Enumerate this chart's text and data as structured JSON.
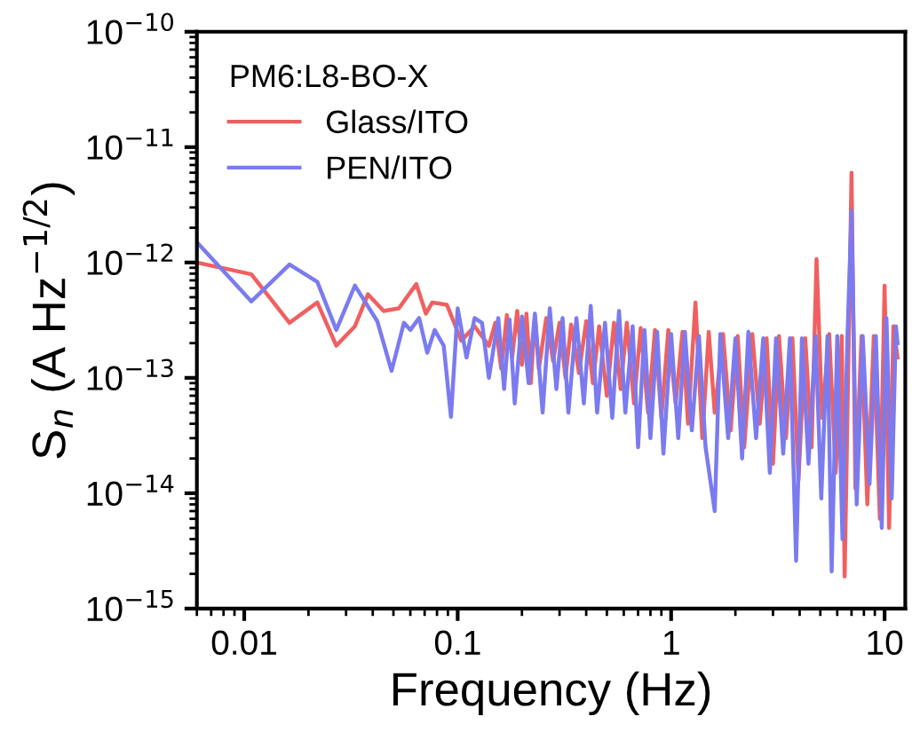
{
  "chart_data": {
    "type": "line",
    "xlabel": "Frequency (Hz)",
    "ylabel": "S$_{n}$ (A Hz$^{−1/2}$)",
    "legend_title": "PM6:L8-BO-X",
    "log": "xy",
    "grid": false,
    "legend": "top left",
    "marker": "none",
    "line_style": "solid",
    "xlim": [
      0.006,
      12.5
    ],
    "xticks": [
      0.01,
      0.1,
      1,
      10
    ],
    "ylim": [
      1e-15,
      1e-10
    ],
    "yticks": [
      {
        "value": 1e-15,
        "label": "10$^{−15}$"
      },
      {
        "value": 1e-14,
        "label": "10$^{−14}$"
      },
      {
        "value": 1e-13,
        "label": "10$^{−13}$"
      },
      {
        "value": 1e-12,
        "label": "10$^{−12}$"
      },
      {
        "value": 1e-11,
        "label": "10$^{−11}$"
      },
      {
        "value": 1e-10,
        "label": "10$^{−10}$"
      }
    ],
    "series": [
      {
        "name": "Glass/ITO",
        "color": "#f06060",
        "x": [
          0.006,
          0.0108,
          0.0163,
          0.022,
          0.027,
          0.033,
          0.038,
          0.045,
          0.053,
          0.064,
          0.071,
          0.076,
          0.089,
          0.104,
          0.12,
          0.14,
          0.15,
          0.16,
          0.17,
          0.18,
          0.19,
          0.2,
          0.21,
          0.22,
          0.23,
          0.24,
          0.26,
          0.28,
          0.3,
          0.32,
          0.34,
          0.37,
          0.4,
          0.43,
          0.46,
          0.5,
          0.54,
          0.58,
          0.62,
          0.67,
          0.72,
          0.78,
          0.84,
          0.9,
          0.97,
          1.05,
          1.13,
          1.2,
          1.3,
          1.4,
          1.5,
          1.6,
          1.75,
          1.9,
          2.05,
          2.2,
          2.4,
          2.6,
          2.8,
          3.0,
          3.2,
          3.45,
          3.7,
          3.95,
          4.25,
          4.55,
          4.8,
          5.1,
          5.5,
          5.9,
          6.3,
          6.5,
          6.8,
          7.0,
          7.3,
          7.8,
          8.3,
          8.9,
          9.5,
          10.0,
          10.5,
          11.0,
          11.5
        ],
        "values": [
          1e-12,
          7.9e-13,
          3e-13,
          4.5e-13,
          1.9e-13,
          2.8e-13,
          5.3e-13,
          3.8e-13,
          4e-13,
          6.5e-13,
          3.6e-13,
          4.5e-13,
          4.3e-13,
          2.1e-13,
          2.8e-13,
          1.9e-13,
          3e-13,
          1.2e-13,
          3.5e-13,
          1.5e-13,
          3.8e-13,
          1.3e-13,
          3.6e-13,
          9e-14,
          3.4e-13,
          1.2e-13,
          3.3e-13,
          1.4e-13,
          3e-13,
          1e-13,
          2.9e-13,
          1.1e-13,
          3.1e-13,
          9e-14,
          2.8e-13,
          7e-14,
          3e-13,
          8e-14,
          3e-13,
          6e-14,
          2.7e-13,
          5e-14,
          2.6e-13,
          4.5e-14,
          2.6e-13,
          6e-14,
          2.5e-13,
          4e-14,
          4.5e-13,
          3e-14,
          2.5e-13,
          5e-14,
          2.4e-13,
          3.5e-14,
          2.3e-13,
          2.5e-14,
          2.4e-13,
          4e-14,
          2.2e-13,
          1.8e-14,
          2.3e-13,
          3e-14,
          2.2e-13,
          1.3e-14,
          2.2e-13,
          2.5e-14,
          1.07e-12,
          4.5e-14,
          2.4e-13,
          1.5e-14,
          2.3e-13,
          1.9e-15,
          2.4e-13,
          6e-12,
          1.1e-14,
          2.3e-13,
          8e-15,
          2.3e-13,
          6e-15,
          6.3e-13,
          5e-15,
          2.8e-13,
          1.5e-13
        ]
      },
      {
        "name": "PEN/ITO",
        "color": "#7b7bf0",
        "x": [
          0.006,
          0.0108,
          0.0163,
          0.022,
          0.027,
          0.033,
          0.042,
          0.049,
          0.056,
          0.06,
          0.066,
          0.072,
          0.078,
          0.086,
          0.093,
          0.1,
          0.11,
          0.12,
          0.13,
          0.14,
          0.155,
          0.165,
          0.175,
          0.185,
          0.2,
          0.215,
          0.23,
          0.25,
          0.27,
          0.29,
          0.31,
          0.33,
          0.36,
          0.39,
          0.42,
          0.45,
          0.49,
          0.53,
          0.57,
          0.61,
          0.66,
          0.7,
          0.75,
          0.8,
          0.86,
          0.92,
          1.0,
          1.08,
          1.16,
          1.25,
          1.35,
          1.45,
          1.6,
          1.7,
          1.85,
          2.0,
          2.15,
          2.3,
          2.5,
          2.7,
          2.9,
          3.1,
          3.35,
          3.6,
          3.85,
          4.1,
          4.4,
          4.75,
          5.05,
          5.4,
          5.65,
          6.0,
          6.35,
          6.7,
          7.0,
          7.4,
          7.9,
          8.5,
          9.1,
          9.7,
          10.2,
          10.8,
          11.3,
          11.5
        ],
        "values": [
          1.5e-12,
          4.6e-13,
          9.6e-13,
          6.8e-13,
          2.6e-13,
          6.3e-13,
          3.1e-13,
          1.15e-13,
          3e-13,
          2.6e-13,
          3.3e-13,
          1.65e-13,
          2.6e-13,
          1.9e-13,
          4.6e-14,
          4e-13,
          1.5e-13,
          3.3e-13,
          3e-13,
          1e-13,
          3.3e-13,
          8e-14,
          3.2e-13,
          6e-14,
          3.4e-13,
          9e-14,
          3.6e-13,
          5e-14,
          4e-13,
          8e-14,
          3.3e-13,
          5e-14,
          3.3e-13,
          6e-14,
          4.2e-13,
          5e-14,
          3e-13,
          4.5e-14,
          3.8e-13,
          5e-14,
          2.8e-13,
          2.5e-14,
          2.6e-13,
          3e-14,
          2.5e-13,
          2.2e-14,
          2.4e-13,
          3e-14,
          2.5e-13,
          3.5e-14,
          2.3e-13,
          2.5e-14,
          7e-15,
          2.4e-13,
          3e-14,
          2.2e-13,
          2e-14,
          2.5e-13,
          3e-14,
          2.2e-13,
          1.5e-14,
          2.2e-13,
          2.2e-14,
          2.2e-13,
          2.6e-15,
          2.2e-13,
          1.8e-14,
          2.3e-13,
          9e-15,
          2.3e-13,
          2.1e-15,
          2.3e-13,
          4e-15,
          2.3e-13,
          2.8e-12,
          8e-15,
          2.3e-13,
          1.2e-14,
          2.3e-13,
          5e-15,
          3.3e-13,
          9e-15,
          2.8e-13,
          2e-13
        ]
      }
    ]
  }
}
